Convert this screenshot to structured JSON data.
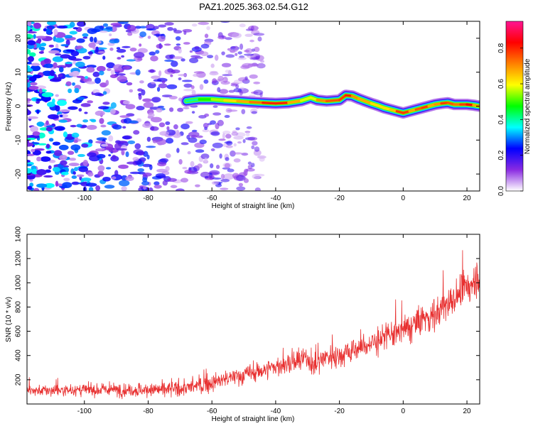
{
  "title": "PAZ1.2025.363.02.54.G12",
  "chart_data": [
    {
      "type": "heatmap",
      "name": "spectrogram",
      "xlabel": "Height of straight line (km)",
      "ylabel": "Frequency (Hz)",
      "xlim": [
        -118,
        24
      ],
      "ylim": [
        -25,
        25
      ],
      "x_ticks": [
        -100,
        -80,
        -60,
        -40,
        -20,
        0,
        20
      ],
      "x_tick_labels": [
        "-100",
        "-80",
        "-60",
        "-40",
        "-20",
        "0",
        "20"
      ],
      "y_ticks": [
        20,
        10,
        0,
        -10,
        -20
      ],
      "y_tick_labels": [
        "20",
        "10",
        "0",
        "-10",
        "-20"
      ],
      "colorbar": {
        "label": "Normalized spectral amplitude",
        "range": [
          0,
          0.95
        ],
        "ticks": [
          0.0,
          0.2,
          0.4,
          0.6,
          0.8
        ],
        "tick_labels": [
          "0.0",
          "0.2",
          "0.4",
          "0.6",
          "0.8"
        ],
        "colors": [
          "#ffffff",
          "#8a2be2",
          "#0000ff",
          "#00ffff",
          "#00ff00",
          "#ffff00",
          "#ff8000",
          "#ff0000",
          "#ff1493"
        ]
      },
      "ridge": {
        "x": [
          -68,
          -64,
          -60,
          -56,
          -52,
          -48,
          -44,
          -40,
          -36,
          -32,
          -29,
          -27,
          -24,
          -20,
          -18,
          -16,
          -14,
          -12,
          -10,
          -8,
          -6,
          -4,
          -2,
          0,
          2,
          4,
          6,
          8,
          10,
          12,
          14,
          16,
          18,
          20,
          22,
          24
        ],
        "y": [
          1.5,
          2.0,
          2.0,
          1.7,
          1.5,
          1.2,
          1.0,
          0.8,
          1.0,
          1.6,
          2.5,
          1.8,
          1.5,
          1.8,
          3.2,
          3.0,
          2.2,
          1.5,
          0.8,
          0.2,
          -0.5,
          -1.0,
          -1.5,
          -2.0,
          -1.5,
          -1.0,
          -0.5,
          0.0,
          0.5,
          0.8,
          1.0,
          0.5,
          0.5,
          0.5,
          0.3,
          0.0
        ],
        "amplitude": [
          0.35,
          0.45,
          0.5,
          0.6,
          0.65,
          0.7,
          0.75,
          0.85,
          0.75,
          0.6,
          0.55,
          0.6,
          0.8,
          0.7,
          0.85,
          0.75,
          0.65,
          0.7,
          0.65,
          0.6,
          0.65,
          0.6,
          0.7,
          0.85,
          0.7,
          0.65,
          0.85,
          0.7,
          0.65,
          0.75,
          0.8,
          0.7,
          0.75,
          0.8,
          0.85,
          0.5
        ]
      },
      "noise": {
        "x_range": [
          -118,
          -58
        ],
        "density_note": "scattered low-amplitude speckle, fading toward higher heights",
        "amplitude_range": [
          0.02,
          0.25
        ]
      }
    },
    {
      "type": "line",
      "name": "snr",
      "xlabel": "Height of straight line (km)",
      "ylabel": "SNR (10 * v/v)",
      "xlim": [
        -118,
        24
      ],
      "ylim": [
        0,
        1400
      ],
      "x_ticks": [
        -100,
        -80,
        -60,
        -40,
        -20,
        0,
        20
      ],
      "x_tick_labels": [
        "-100",
        "-80",
        "-60",
        "-40",
        "-20",
        "0",
        "20"
      ],
      "y_ticks": [
        200,
        400,
        600,
        800,
        1000,
        1200,
        1400
      ],
      "y_tick_labels": [
        "200",
        "400",
        "600",
        "800",
        "1000",
        "1200",
        "1400"
      ],
      "line_color": "#e83030",
      "trend": {
        "x": [
          -118,
          -110,
          -100,
          -90,
          -80,
          -70,
          -62,
          -55,
          -50,
          -45,
          -40,
          -35,
          -30,
          -28,
          -25,
          -20,
          -15,
          -10,
          -5,
          0,
          5,
          10,
          15,
          20,
          24
        ],
        "y": [
          110,
          110,
          115,
          118,
          115,
          125,
          160,
          210,
          240,
          270,
          310,
          330,
          380,
          300,
          390,
          400,
          450,
          500,
          560,
          600,
          680,
          740,
          850,
          950,
          1080
        ]
      },
      "spread": {
        "x": [
          -118,
          -70,
          -40,
          -20,
          0,
          24
        ],
        "y": [
          70,
          100,
          130,
          160,
          200,
          240
        ]
      }
    }
  ]
}
